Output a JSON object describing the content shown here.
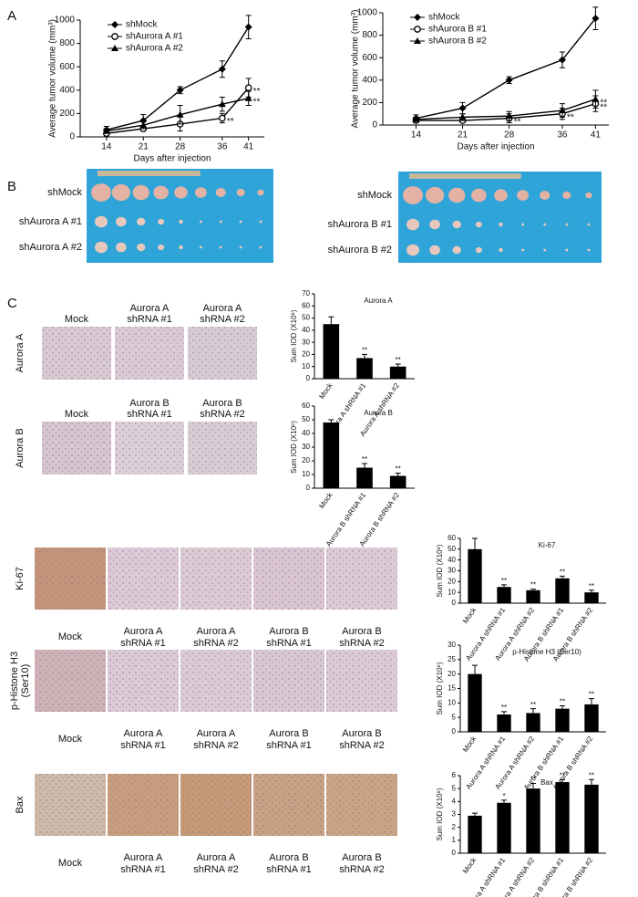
{
  "panel_labels": [
    "A",
    "B",
    "C"
  ],
  "photos": [
    {
      "labels": [
        "shMock",
        "shAurora A #1",
        "shAurora A #2"
      ]
    },
    {
      "labels": [
        "shMock",
        "shAurora B #1",
        "shAurora B #2"
      ]
    }
  ],
  "micrographs": [
    {
      "row_label": [
        "Aurora A"
      ],
      "columns": [
        [
          "Mock"
        ],
        [
          "Aurora A",
          "shRNA #1"
        ],
        [
          "Aurora A",
          "shRNA #2"
        ]
      ]
    },
    {
      "row_label": [
        "Aurora B"
      ],
      "columns": [
        [
          "Mock"
        ],
        [
          "Aurora B",
          "shRNA #1"
        ],
        [
          "Aurora B",
          "shRNA #2"
        ]
      ]
    },
    {
      "row_label": [
        "Ki-67"
      ],
      "columns": [
        [
          "Mock"
        ],
        [
          "Aurora A",
          "shRNA #1"
        ],
        [
          "Aurora A",
          "shRNA #2"
        ],
        [
          "Aurora B",
          "shRNA #1"
        ],
        [
          "Aurora B",
          "shRNA #2"
        ]
      ]
    },
    {
      "row_label": [
        "p-Histone H3",
        "(Ser10)"
      ],
      "columns": [
        [
          "Mock"
        ],
        [
          "Aurora A",
          "shRNA #1"
        ],
        [
          "Aurora A",
          "shRNA #2"
        ],
        [
          "Aurora B",
          "shRNA #1"
        ],
        [
          "Aurora B",
          "shRNA #2"
        ]
      ]
    },
    {
      "row_label": [
        "Bax"
      ],
      "columns": [
        [
          "Mock"
        ],
        [
          "Aurora A",
          "shRNA #1"
        ],
        [
          "Aurora A",
          "shRNA #2"
        ],
        [
          "Aurora B",
          "shRNA #1"
        ],
        [
          "Aurora B",
          "shRNA #2"
        ]
      ]
    }
  ],
  "chart_data": [
    {
      "type": "line",
      "x_label": "Days after injection",
      "y_label": "Average tumor volume (mm³)",
      "x": [
        14,
        21,
        28,
        36,
        41
      ],
      "xlim": [
        9,
        44
      ],
      "xticks": [
        14,
        21,
        28,
        36,
        41
      ],
      "ylim": [
        0,
        1000
      ],
      "yticks": [
        0,
        200,
        400,
        600,
        800,
        1000
      ],
      "legend": "upper left",
      "series": [
        {
          "name": "shMock",
          "color": "#000000",
          "marker": "diamond",
          "values": [
            60,
            140,
            400,
            580,
            940
          ],
          "errors": [
            30,
            50,
            30,
            70,
            100
          ]
        },
        {
          "name": "shAurora A #1",
          "color": "#000000",
          "marker": "circle-open",
          "values": [
            30,
            70,
            110,
            160,
            420
          ],
          "errors": [
            20,
            20,
            60,
            40,
            80
          ]
        },
        {
          "name": "shAurora A #2",
          "color": "#000000",
          "marker": "triangle",
          "values": [
            50,
            100,
            190,
            280,
            330
          ],
          "errors": [
            20,
            30,
            80,
            60,
            60
          ]
        }
      ],
      "annotations": [
        {
          "text": "**",
          "series": 1,
          "point": 3
        },
        {
          "text": "**",
          "series": 1,
          "point": 4
        },
        {
          "text": "**",
          "series": 2,
          "point": 4
        }
      ]
    },
    {
      "type": "line",
      "x_label": "Days after injection",
      "y_label": "Average tumor volume (mm³)",
      "x": [
        14,
        21,
        28,
        36,
        41
      ],
      "xlim": [
        9,
        43
      ],
      "xticks": [
        14,
        21,
        28,
        36,
        41
      ],
      "ylim": [
        0,
        1000
      ],
      "yticks": [
        0,
        200,
        400,
        600,
        800,
        1000
      ],
      "legend": "upper left",
      "series": [
        {
          "name": "shMock",
          "color": "#000000",
          "marker": "diamond",
          "values": [
            60,
            150,
            400,
            580,
            950
          ],
          "errors": [
            30,
            50,
            30,
            70,
            100
          ]
        },
        {
          "name": "shAurora B #1",
          "color": "#000000",
          "marker": "circle-open",
          "values": [
            40,
            40,
            60,
            100,
            190
          ],
          "errors": [
            20,
            20,
            40,
            50,
            70
          ]
        },
        {
          "name": "shAurora B #2",
          "color": "#000000",
          "marker": "triangle",
          "values": [
            50,
            70,
            80,
            130,
            230
          ],
          "errors": [
            20,
            30,
            40,
            60,
            80
          ]
        }
      ],
      "annotations": [
        {
          "text": "**",
          "series": 1,
          "point": 2
        },
        {
          "text": "**",
          "series": 1,
          "point": 3
        },
        {
          "text": "**",
          "series": 1,
          "point": 4
        },
        {
          "text": "**",
          "series": 2,
          "point": 4
        }
      ]
    },
    {
      "type": "bar",
      "title": "Aurora A",
      "y_label": "Sum IOD (X10⁶)",
      "color": "#000000",
      "categories": [
        "Mock",
        "Aurora A shRNA #1",
        "Aurora A shRNA #2"
      ],
      "values": [
        45,
        17,
        10
      ],
      "errors": [
        6,
        3,
        2
      ],
      "ylim": [
        0,
        70
      ],
      "yticks": [
        0,
        10,
        20,
        30,
        40,
        50,
        60,
        70
      ],
      "annotations": [
        {
          "text": "**",
          "index": 1
        },
        {
          "text": "**",
          "index": 2
        }
      ]
    },
    {
      "type": "bar",
      "title": "Aurora B",
      "y_label": "Sum IOD (X10⁶)",
      "color": "#000000",
      "categories": [
        "Mock",
        "Aurora B shRNA #1",
        "Aurora B shRNA #2"
      ],
      "values": [
        48,
        15,
        9
      ],
      "errors": [
        2,
        3,
        2
      ],
      "ylim": [
        0,
        60
      ],
      "yticks": [
        0,
        10,
        20,
        30,
        40,
        50,
        60
      ],
      "annotations": [
        {
          "text": "**",
          "index": 1
        },
        {
          "text": "**",
          "index": 2
        }
      ]
    },
    {
      "type": "bar",
      "title": "Ki-67",
      "y_label": "Sum IOD (X10⁶)",
      "color": "#000000",
      "categories": [
        "Mock",
        "Aurora A shRNA #1",
        "Aurora A shRNA #2",
        "Aurora B shRNA #1",
        "Aurora B shRNA #2"
      ],
      "values": [
        50,
        15,
        12,
        23,
        10
      ],
      "errors": [
        10,
        2,
        1,
        2,
        2
      ],
      "ylim": [
        0,
        60
      ],
      "yticks": [
        0,
        10,
        20,
        30,
        40,
        50,
        60
      ],
      "annotations": [
        {
          "text": "**",
          "index": 1
        },
        {
          "text": "**",
          "index": 2
        },
        {
          "text": "**",
          "index": 3
        },
        {
          "text": "**",
          "index": 4
        }
      ]
    },
    {
      "type": "bar",
      "title": "p-Histone H3 (Ser10)",
      "y_label": "Sum IOD (X10⁶)",
      "color": "#000000",
      "categories": [
        "Mock",
        "Aurora A shRNA #1",
        "Aurora A shRNA #2",
        "Aurora B shRNA #1",
        "Aurora B shRNA #2"
      ],
      "values": [
        20,
        6,
        6.5,
        8,
        9.5
      ],
      "errors": [
        3,
        1,
        1.5,
        1,
        2
      ],
      "ylim": [
        0,
        30
      ],
      "yticks": [
        0,
        5,
        10,
        15,
        20,
        25,
        30
      ],
      "annotations": [
        {
          "text": "**",
          "index": 1
        },
        {
          "text": "**",
          "index": 2
        },
        {
          "text": "**",
          "index": 3
        },
        {
          "text": "**",
          "index": 4
        }
      ]
    },
    {
      "type": "bar",
      "title": "Bax",
      "y_label": "Sum IOD (X10⁶)",
      "color": "#000000",
      "categories": [
        "Mock",
        "Aurora A shRNA #1",
        "Aurora A shRNA #2",
        "Aurora B shRNA #1",
        "Aurora B shRNA #2"
      ],
      "values": [
        2.9,
        3.9,
        5,
        5.5,
        5.3
      ],
      "errors": [
        0.2,
        0.2,
        0.4,
        0.2,
        0.4
      ],
      "ylim": [
        0,
        6
      ],
      "yticks": [
        0,
        1,
        2,
        3,
        4,
        5,
        6
      ],
      "annotations": [
        {
          "text": "*",
          "index": 1
        },
        {
          "text": "**",
          "index": 2
        },
        {
          "text": "**",
          "index": 3
        },
        {
          "text": "**",
          "index": 4
        }
      ]
    }
  ]
}
